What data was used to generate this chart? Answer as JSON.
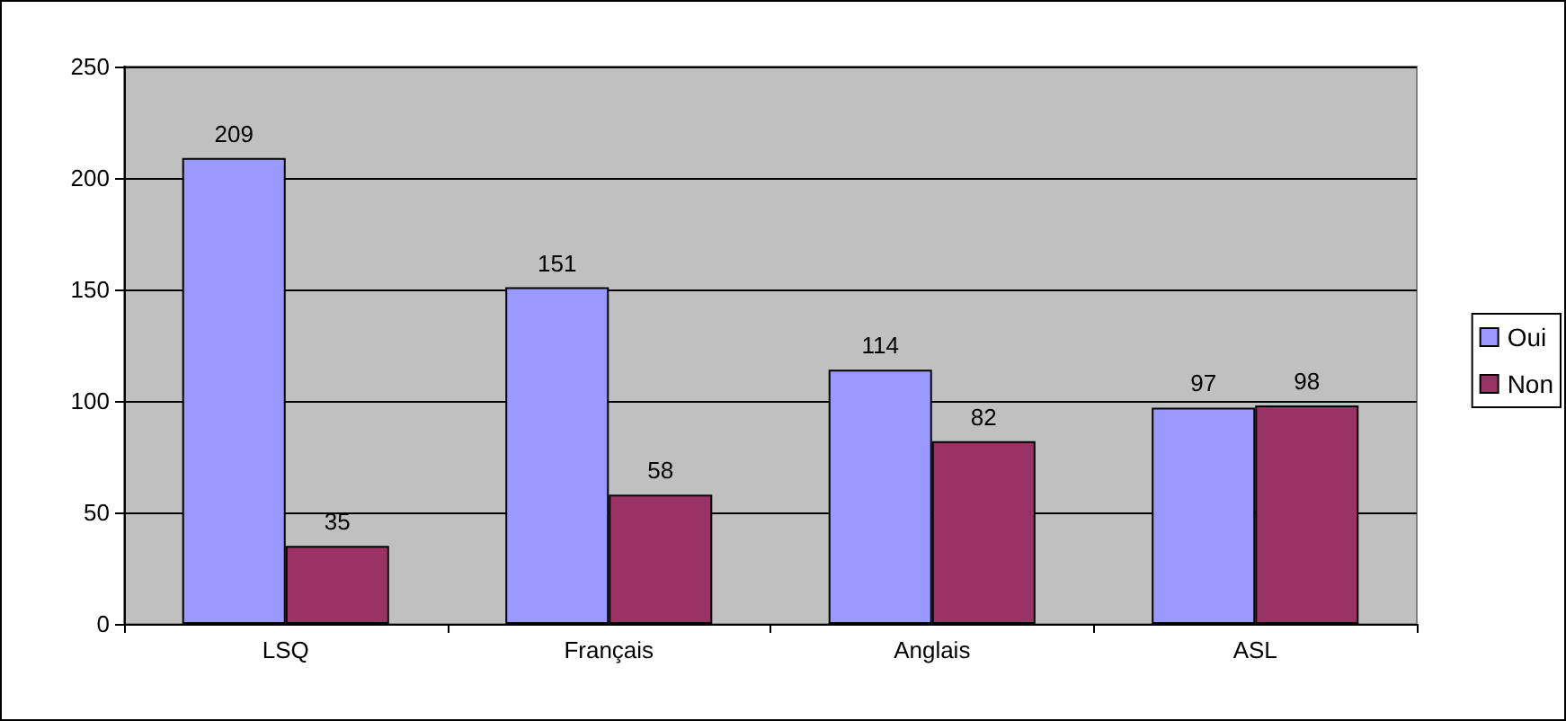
{
  "chart_data": {
    "type": "bar",
    "categories": [
      "LSQ",
      "Français",
      "Anglais",
      "ASL"
    ],
    "series": [
      {
        "name": "Oui",
        "color": "#9999ff",
        "values": [
          209,
          151,
          114,
          97
        ]
      },
      {
        "name": "Non",
        "color": "#993366",
        "values": [
          35,
          58,
          82,
          98
        ]
      }
    ],
    "ylim": [
      0,
      250
    ],
    "yticks": [
      0,
      50,
      100,
      150,
      200,
      250
    ],
    "grid": "y",
    "legend": "right",
    "data_labels": true
  }
}
